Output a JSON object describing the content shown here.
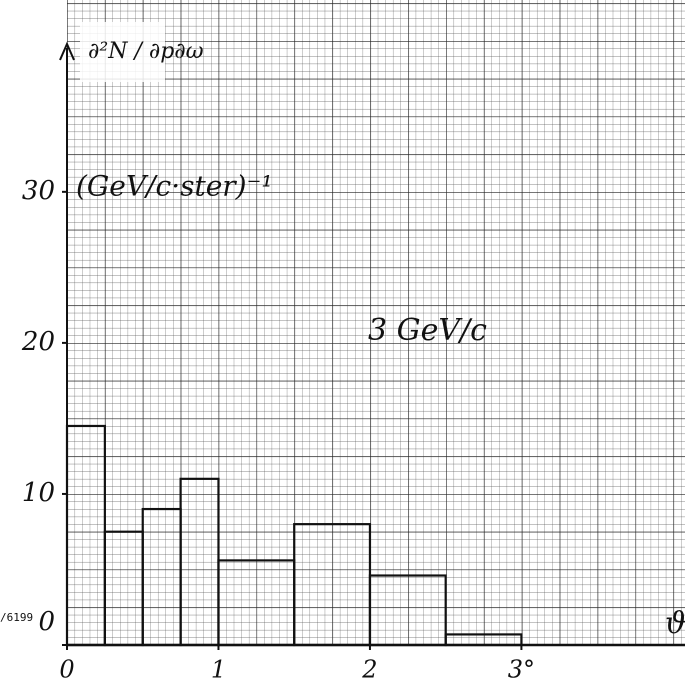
{
  "chart_data": {
    "type": "histogram",
    "y_label": "∂²N / ∂p∂ω",
    "y_unit": "(GeV/c·ster)⁻¹",
    "annotation": "3 GeV/c",
    "x_label": "ϑ",
    "side_label": "/6199",
    "bins": [
      0,
      0.25,
      0.5,
      0.75,
      1,
      1.5,
      2,
      2.5,
      3
    ],
    "counts": [
      14.5,
      7.5,
      9,
      11,
      5.6,
      8,
      4.6,
      0.7
    ],
    "color": "#111111",
    "xlim": [
      0,
      4.08
    ],
    "ylim": [
      0,
      42.7
    ],
    "xticks": [
      0,
      1,
      2,
      {
        "value": 3,
        "label": "3°"
      }
    ],
    "yticks": [
      0,
      10,
      20,
      30
    ],
    "grid": true
  }
}
